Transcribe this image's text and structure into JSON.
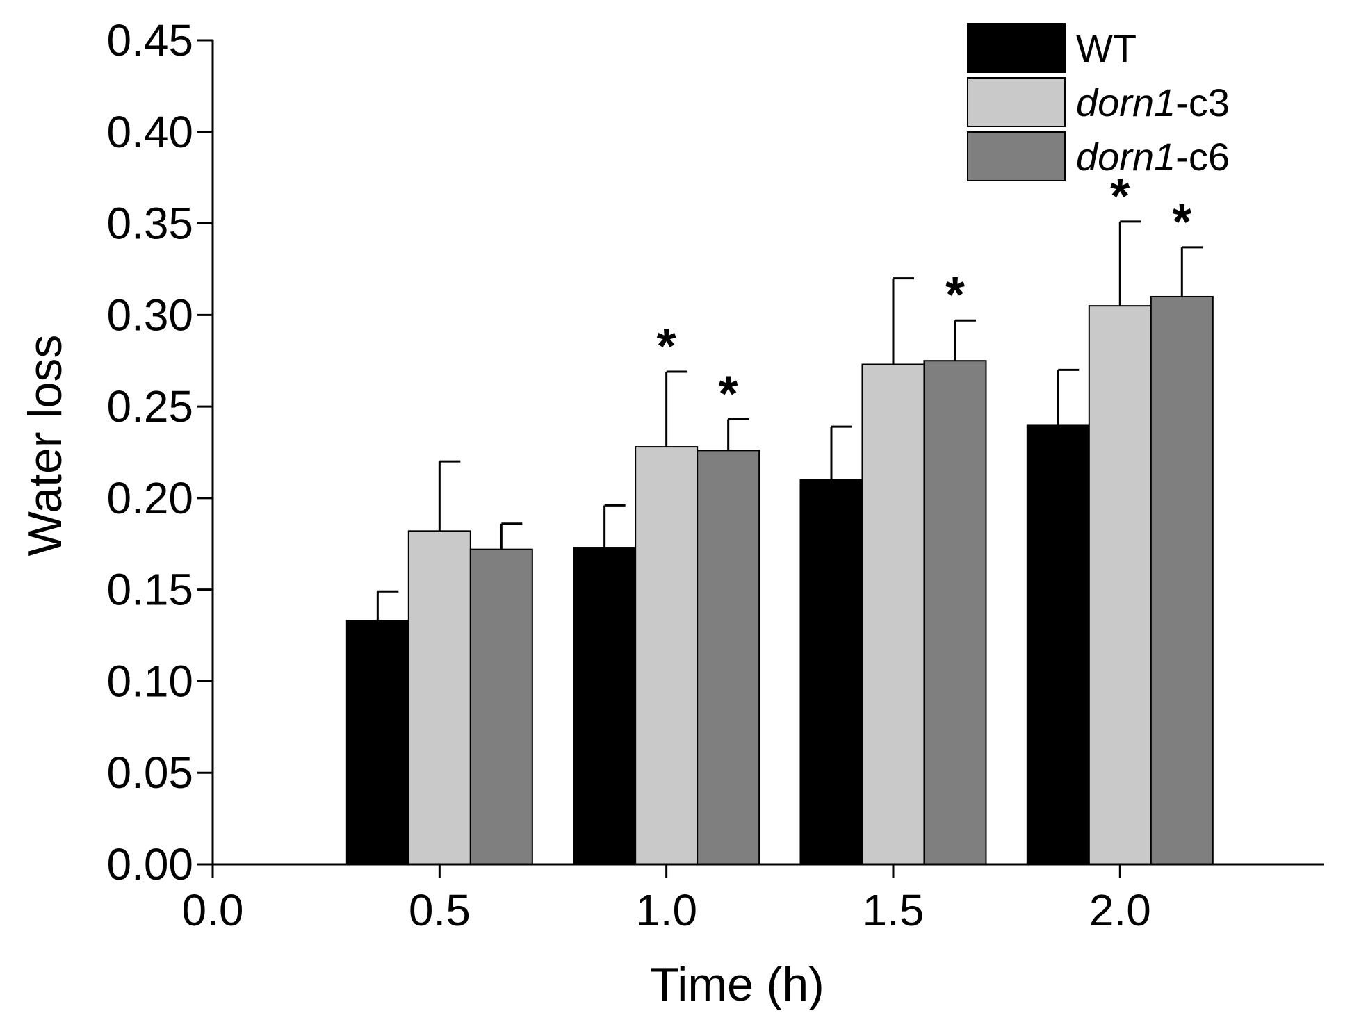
{
  "chart_data": {
    "type": "bar",
    "title": "",
    "xlabel": "Time (h)",
    "ylabel": "Water loss",
    "xlim": [
      0.0,
      2.45
    ],
    "ylim": [
      0.0,
      0.45
    ],
    "x_ticks": [
      "0.0",
      "0.5",
      "1.0",
      "1.5",
      "2.0"
    ],
    "y_ticks": [
      "0.00",
      "0.05",
      "0.10",
      "0.15",
      "0.20",
      "0.25",
      "0.30",
      "0.35",
      "0.40",
      "0.45"
    ],
    "categories": [
      "0.5",
      "1.0",
      "1.5",
      "2.0"
    ],
    "category_x": [
      0.5,
      1.0,
      1.5,
      2.0
    ],
    "grid": false,
    "legend_position": "top-right",
    "significance_marker": "*",
    "series": [
      {
        "name": "WT",
        "name_italic": "",
        "name_suffix": "WT",
        "color": "#000000",
        "values": [
          0.133,
          0.173,
          0.21,
          0.24
        ],
        "errors": [
          0.016,
          0.023,
          0.029,
          0.03
        ],
        "significant": [
          false,
          false,
          false,
          false
        ]
      },
      {
        "name": "dorn1-c3",
        "name_italic": "dorn1",
        "name_suffix": "-c3",
        "color": "#c9c9c9",
        "values": [
          0.182,
          0.228,
          0.273,
          0.305
        ],
        "errors": [
          0.038,
          0.041,
          0.047,
          0.046
        ],
        "significant": [
          false,
          true,
          false,
          true
        ]
      },
      {
        "name": "dorn1-c6",
        "name_italic": "dorn1",
        "name_suffix": "-c6",
        "color": "#7f7f7f",
        "values": [
          0.172,
          0.226,
          0.275,
          0.31
        ],
        "errors": [
          0.014,
          0.017,
          0.022,
          0.027
        ],
        "significant": [
          false,
          true,
          true,
          true
        ]
      }
    ]
  }
}
